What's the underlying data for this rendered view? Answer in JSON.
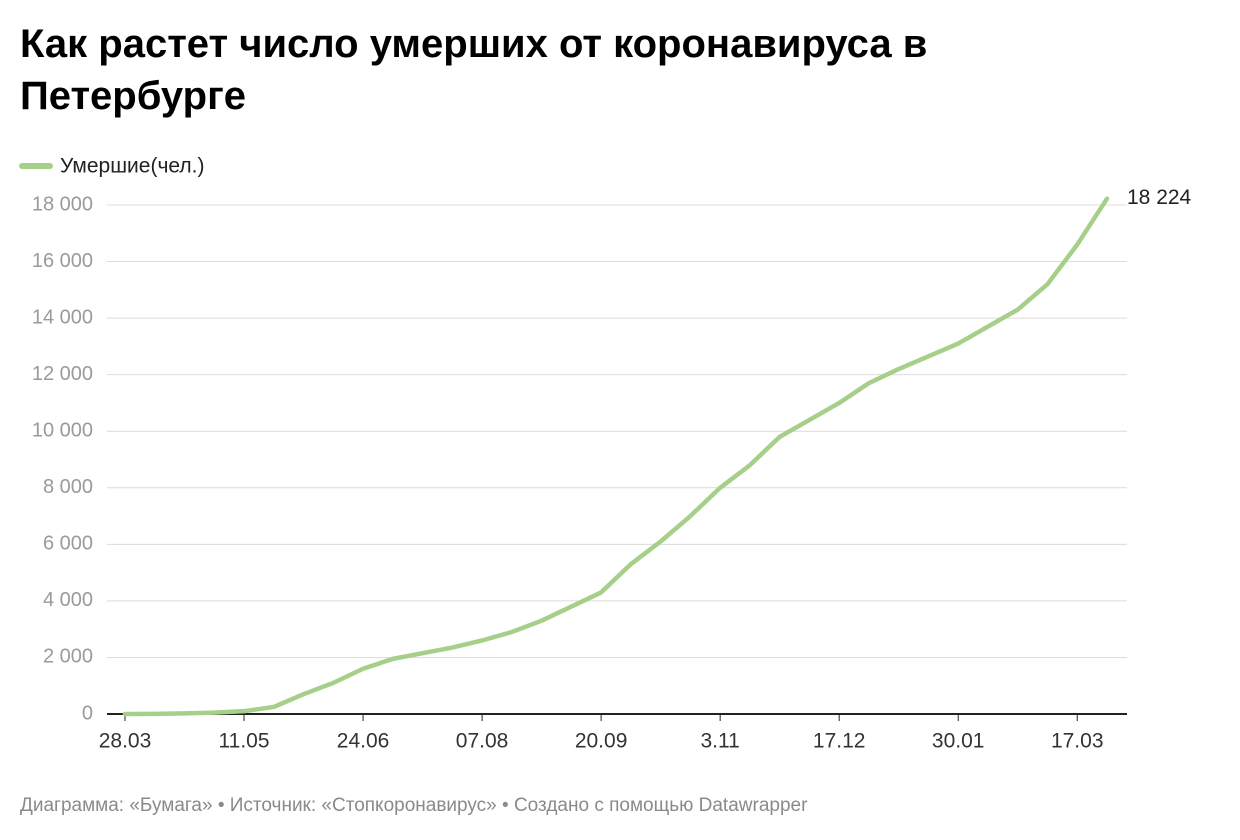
{
  "chart_data": {
    "type": "line",
    "title": "Как растет число умерших от коронавируса в Петербурге",
    "caption": "Диаграмма: «Бумага» • Источник: «Стопкоронавирус» • Создано с помощью Datawrapper",
    "categories": [
      "28.03",
      null,
      null,
      null,
      "11.05",
      null,
      null,
      null,
      "24.06",
      null,
      null,
      null,
      "07.08",
      null,
      null,
      null,
      "20.09",
      null,
      null,
      null,
      "3.11",
      null,
      null,
      null,
      "17.12",
      null,
      null,
      null,
      "30.01",
      null,
      null,
      null,
      "17.03",
      null
    ],
    "series": [
      {
        "name": "Умершие(чел.)",
        "color": "#a6d08a",
        "values": [
          0,
          5,
          20,
          50,
          100,
          250,
          700,
          1100,
          1600,
          1950,
          2150,
          2350,
          2600,
          2900,
          3300,
          3800,
          4300,
          5300,
          6100,
          7000,
          8000,
          8800,
          9800,
          10400,
          11000,
          11700,
          12200,
          12650,
          13100,
          13700,
          14300,
          15200,
          16600,
          18224
        ],
        "value_labels": [
          null,
          null,
          null,
          null,
          null,
          null,
          null,
          null,
          null,
          null,
          null,
          null,
          null,
          null,
          null,
          null,
          null,
          null,
          null,
          null,
          null,
          null,
          null,
          null,
          null,
          null,
          null,
          null,
          null,
          null,
          null,
          null,
          null,
          "18 224"
        ]
      }
    ],
    "ylim": [
      0,
      18000
    ],
    "yticks": [
      0,
      {
        "value": 2000,
        "label": "2 000"
      },
      {
        "value": 4000,
        "label": "4 000"
      },
      {
        "value": 6000,
        "label": "6 000"
      },
      {
        "value": 8000,
        "label": "8 000"
      },
      {
        "value": 10000,
        "label": "10 000"
      },
      {
        "value": 12000,
        "label": "12 000"
      },
      {
        "value": 14000,
        "label": "14 000"
      },
      {
        "value": 16000,
        "label": "16 000"
      },
      {
        "value": 18000,
        "label": "18 000"
      }
    ],
    "grid": true
  }
}
